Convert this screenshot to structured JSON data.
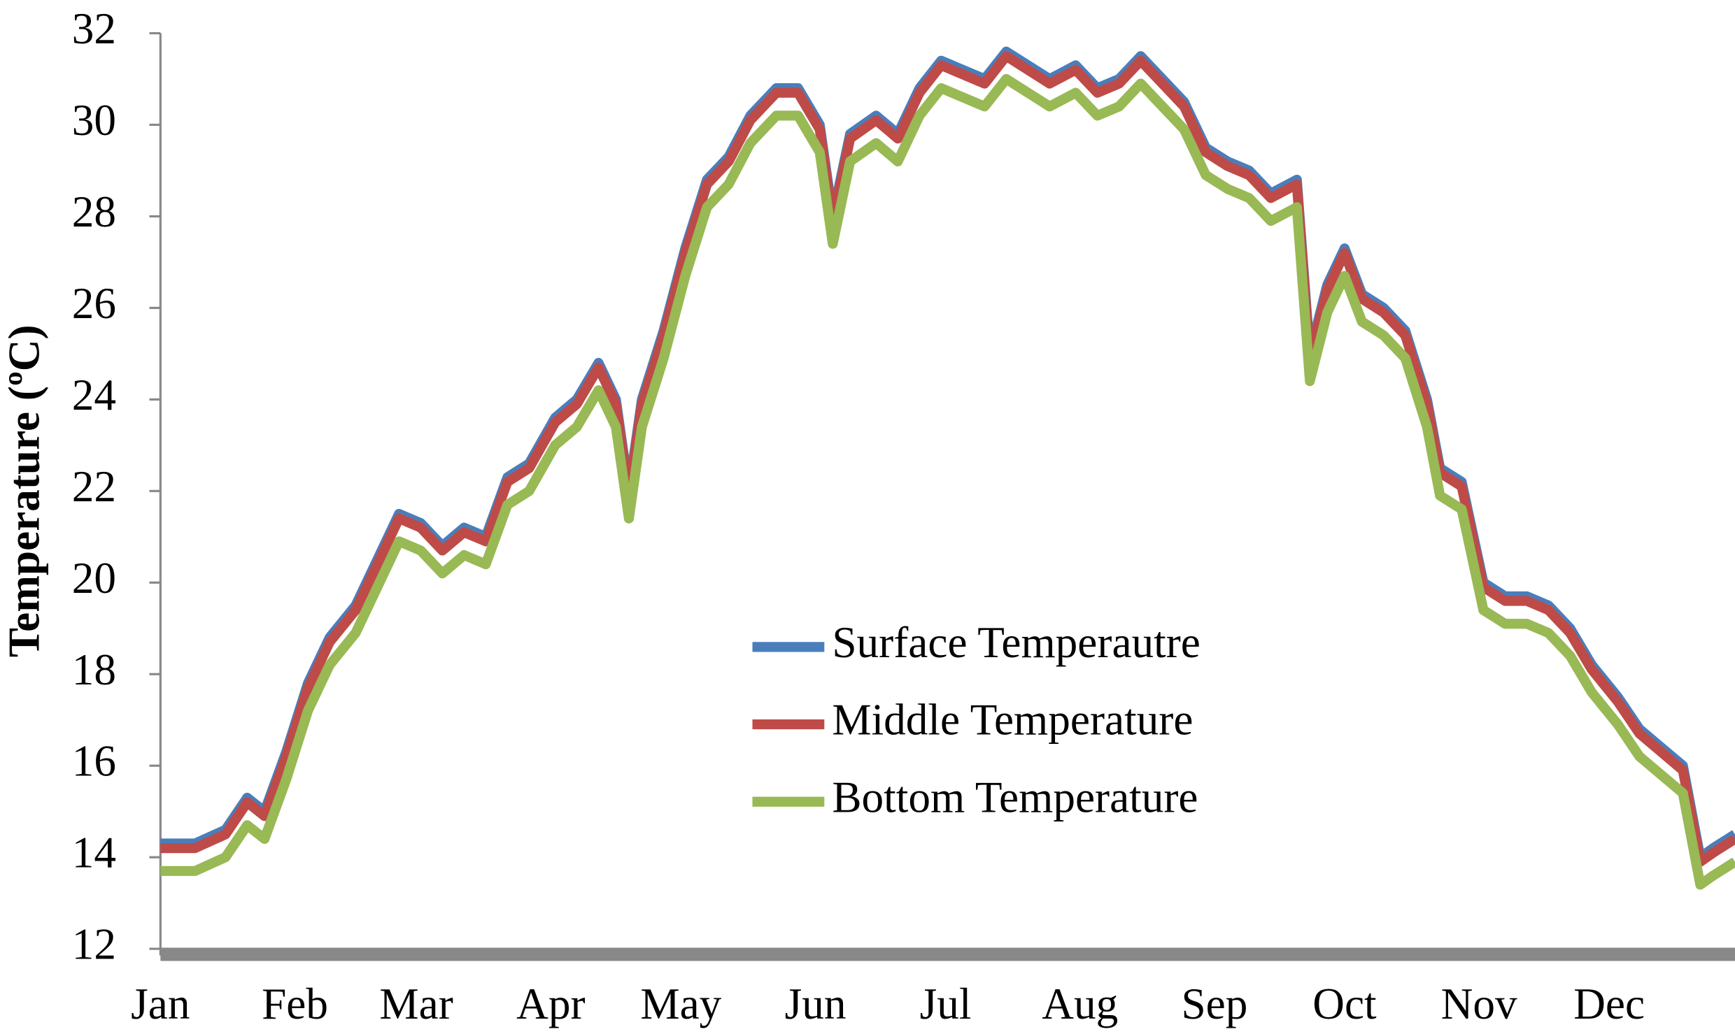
{
  "chart_data": {
    "type": "line",
    "ylabel": "Temperature (ºC)",
    "x": [
      1,
      9,
      16,
      21,
      25,
      30,
      35,
      40,
      46,
      51,
      56,
      61,
      66,
      71,
      76,
      81,
      86,
      92,
      97,
      102,
      106,
      109,
      112,
      117,
      122,
      127,
      132,
      137,
      143,
      148,
      153,
      156,
      160,
      166,
      171,
      176,
      181,
      186,
      191,
      196,
      201,
      206,
      212,
      217,
      222,
      227,
      232,
      237,
      242,
      247,
      252,
      257,
      263,
      266,
      270,
      274,
      278,
      283,
      288,
      293,
      296,
      301,
      306,
      311,
      316,
      321,
      326,
      331,
      337,
      342,
      347,
      352,
      356,
      359,
      364
    ],
    "xlim": [
      1,
      364
    ],
    "xticks": [
      {
        "value": 1,
        "label": "Jan"
      },
      {
        "value": 32,
        "label": "Feb"
      },
      {
        "value": 60,
        "label": "Mar"
      },
      {
        "value": 91,
        "label": "Apr"
      },
      {
        "value": 121,
        "label": "May"
      },
      {
        "value": 152,
        "label": "Jun"
      },
      {
        "value": 182,
        "label": "Jul"
      },
      {
        "value": 213,
        "label": "Aug"
      },
      {
        "value": 244,
        "label": "Sep"
      },
      {
        "value": 274,
        "label": "Oct"
      },
      {
        "value": 305,
        "label": "Nov"
      },
      {
        "value": 335,
        "label": "Dec"
      }
    ],
    "ylim": [
      12,
      32
    ],
    "yticks": [
      12,
      14,
      16,
      18,
      20,
      22,
      24,
      26,
      28,
      30,
      32
    ],
    "legend": "center",
    "series": [
      {
        "name": "Surface Temperautre",
        "color": "#4a7ebb",
        "values": [
          14.3,
          14.3,
          14.6,
          15.3,
          15.0,
          16.3,
          17.8,
          18.8,
          19.5,
          20.5,
          21.5,
          21.3,
          20.8,
          21.2,
          21.0,
          22.3,
          22.6,
          23.6,
          24.0,
          24.8,
          24.0,
          22.0,
          24.0,
          25.5,
          27.3,
          28.8,
          29.3,
          30.2,
          30.8,
          30.8,
          30.0,
          28.0,
          29.8,
          30.2,
          29.8,
          30.8,
          31.4,
          31.2,
          31.0,
          31.6,
          31.3,
          31.0,
          31.3,
          30.8,
          31.0,
          31.5,
          31.0,
          30.5,
          29.5,
          29.2,
          29.0,
          28.5,
          28.8,
          25.0,
          26.5,
          27.3,
          26.3,
          26.0,
          25.5,
          24.0,
          22.5,
          22.2,
          20.0,
          19.7,
          19.7,
          19.5,
          19.0,
          18.2,
          17.5,
          16.8,
          16.4,
          16.0,
          14.0,
          14.2,
          14.5
        ]
      },
      {
        "name": "Middle Temperature",
        "color": "#be4b48",
        "values": [
          14.2,
          14.2,
          14.5,
          15.2,
          14.9,
          16.2,
          17.7,
          18.7,
          19.4,
          20.4,
          21.4,
          21.2,
          20.7,
          21.1,
          20.9,
          22.2,
          22.5,
          23.5,
          23.9,
          24.7,
          23.9,
          21.9,
          23.9,
          25.4,
          27.2,
          28.7,
          29.2,
          30.1,
          30.7,
          30.7,
          29.9,
          27.9,
          29.7,
          30.1,
          29.7,
          30.7,
          31.3,
          31.1,
          30.9,
          31.5,
          31.2,
          30.9,
          31.2,
          30.7,
          30.9,
          31.4,
          30.9,
          30.4,
          29.4,
          29.1,
          28.9,
          28.4,
          28.7,
          24.9,
          26.4,
          27.2,
          26.2,
          25.9,
          25.4,
          23.9,
          22.4,
          22.1,
          19.9,
          19.6,
          19.6,
          19.4,
          18.9,
          18.1,
          17.4,
          16.7,
          16.3,
          15.9,
          13.9,
          14.1,
          14.4
        ]
      },
      {
        "name": "Bottom Temperature",
        "color": "#98b954",
        "values": [
          13.7,
          13.7,
          14.0,
          14.7,
          14.4,
          15.7,
          17.2,
          18.2,
          18.9,
          19.9,
          20.9,
          20.7,
          20.2,
          20.6,
          20.4,
          21.7,
          22.0,
          23.0,
          23.4,
          24.2,
          23.4,
          21.4,
          23.4,
          24.9,
          26.7,
          28.2,
          28.7,
          29.6,
          30.2,
          30.2,
          29.4,
          27.4,
          29.2,
          29.6,
          29.2,
          30.2,
          30.8,
          30.6,
          30.4,
          31.0,
          30.7,
          30.4,
          30.7,
          30.2,
          30.4,
          30.9,
          30.4,
          29.9,
          28.9,
          28.6,
          28.4,
          27.9,
          28.2,
          24.4,
          25.9,
          26.7,
          25.7,
          25.4,
          24.9,
          23.4,
          21.9,
          21.6,
          19.4,
          19.1,
          19.1,
          18.9,
          18.4,
          17.6,
          16.9,
          16.2,
          15.8,
          15.4,
          13.4,
          13.6,
          13.9
        ]
      }
    ]
  }
}
